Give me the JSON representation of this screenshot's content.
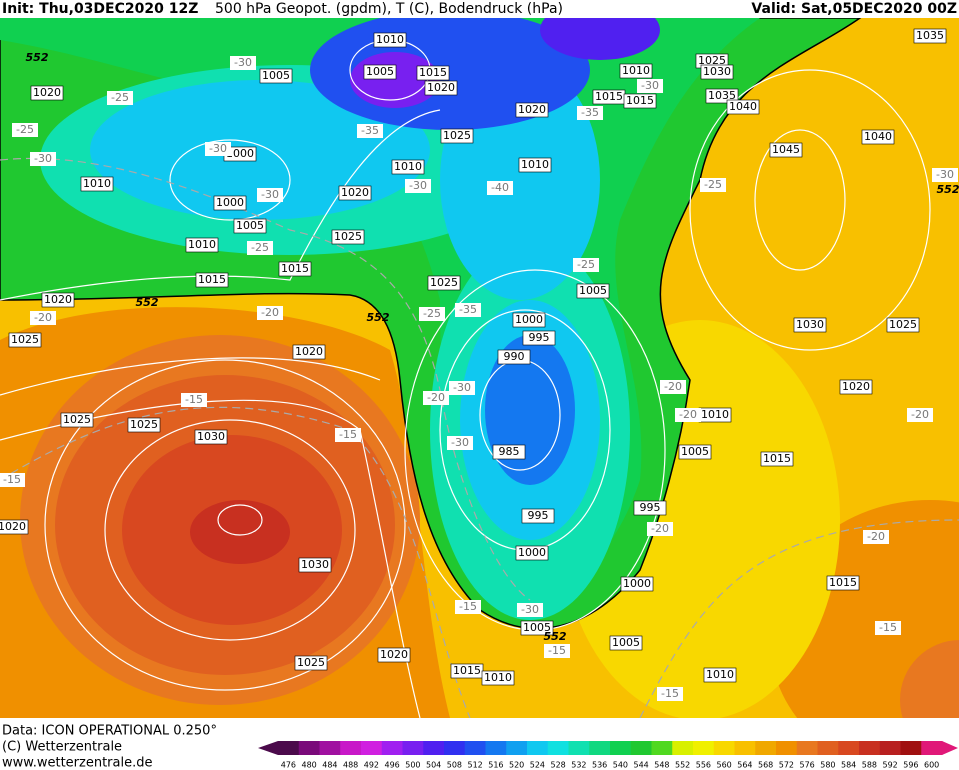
{
  "header": {
    "init": "Init: Thu,03DEC2020 12Z",
    "title": "500 hPa Geopot. (gpdm), T (C), Bodendruck (hPa)",
    "valid": "Valid: Sat,05DEC2020 00Z"
  },
  "footer": {
    "data_source": "Data: ICON OPERATIONAL 0.250°",
    "copyright": "(C) Wetterzentrale",
    "url": "www.wetterzentrale.de"
  },
  "colorbar": {
    "ticks": [
      476,
      480,
      484,
      488,
      492,
      496,
      500,
      504,
      508,
      512,
      516,
      520,
      524,
      528,
      532,
      536,
      540,
      544,
      548,
      552,
      556,
      560,
      564,
      568,
      572,
      576,
      580,
      584,
      588,
      592,
      596,
      600
    ],
    "colors": [
      "#4b0a4b",
      "#7a0a7a",
      "#a010a0",
      "#c818c8",
      "#d020e0",
      "#a020f0",
      "#7820f0",
      "#5020f0",
      "#3030f0",
      "#2050f0",
      "#1478f0",
      "#10a0f0",
      "#10c8f0",
      "#10e0e0",
      "#10e0b0",
      "#10d880",
      "#10d050",
      "#20c830",
      "#50d820",
      "#d8f000",
      "#f0f000",
      "#f8d800",
      "#f8c000",
      "#f0a800",
      "#f09000",
      "#e87820",
      "#e06020",
      "#d84820",
      "#c83020",
      "#b82020",
      "#a01010",
      "#e01878"
    ]
  },
  "map": {
    "isobar_labels": [
      1010,
      1005,
      1015,
      1020,
      1005,
      1020,
      1025,
      1020,
      1010,
      1010,
      1000,
      1010,
      1020,
      1000,
      1005,
      1025,
      1010,
      1015,
      1015,
      1025,
      1020,
      1025,
      1020,
      1000,
      995,
      990,
      1005,
      1030,
      1025,
      1020,
      1010,
      1005,
      1015,
      985,
      1025,
      1025,
      1030,
      995,
      995,
      1000,
      1030,
      1000,
      1015,
      1005,
      1005,
      1020,
      1025,
      1015,
      1010,
      1010,
      1010,
      1015,
      1015,
      1025,
      1030,
      1035,
      1040,
      1035,
      1040,
      1045,
      1020
    ],
    "temperature_labels": [
      -30,
      -25,
      -30,
      -30,
      -30,
      -35,
      -30,
      -35,
      -30,
      -40,
      -25,
      -25,
      -30,
      -20,
      -20,
      -25,
      -35,
      -25,
      -30,
      -20,
      -30,
      -20,
      -20,
      -20,
      -15,
      -15,
      -15,
      -20,
      -20,
      -15,
      -30,
      -15,
      -15,
      -15,
      -25
    ],
    "height_labels": [
      552,
      552,
      552,
      552,
      552
    ]
  }
}
